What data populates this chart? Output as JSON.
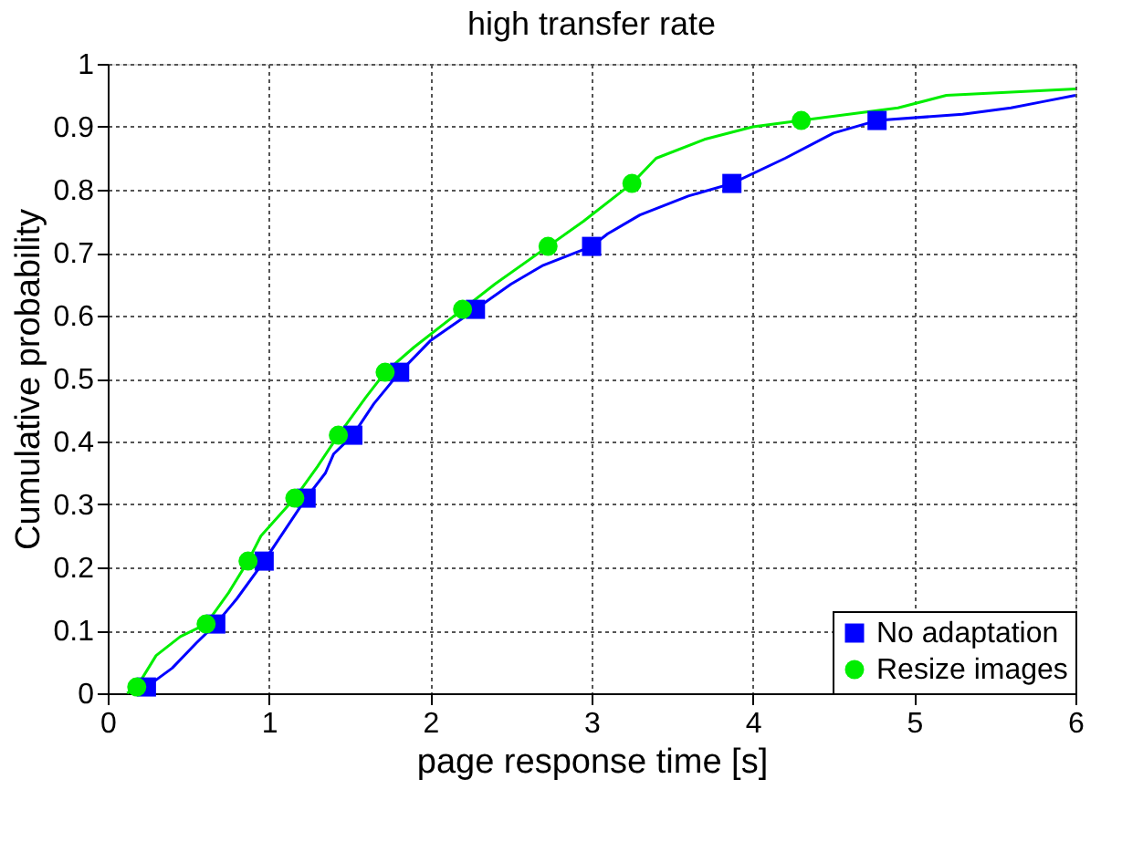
{
  "chart_data": {
    "type": "line",
    "title": "high transfer rate",
    "xlabel": "page response time [s]",
    "ylabel": "Cumulative probability",
    "xlim": [
      0,
      6
    ],
    "xticks": [
      0,
      1,
      2,
      3,
      4,
      5,
      6
    ],
    "ylim": [
      0,
      1
    ],
    "yticks": [
      0,
      0.1,
      0.2,
      0.3,
      0.4,
      0.5,
      0.6,
      0.7,
      0.8,
      0.9,
      1
    ],
    "grid": true,
    "legend": "bottom right",
    "line_style": "solid",
    "series": [
      {
        "name": "No adaptation",
        "color": "#0000ff",
        "x": [
          0.15,
          0.24,
          0.4,
          0.55,
          0.67,
          0.8,
          0.97,
          1.1,
          1.23,
          1.35,
          1.4,
          1.52,
          1.65,
          1.81,
          2.0,
          2.28,
          2.5,
          2.7,
          3.0,
          3.1,
          3.3,
          3.6,
          3.87,
          4.2,
          4.5,
          4.77,
          5.3,
          5.6,
          5.8,
          6.0
        ],
        "values": [
          0.0,
          0.01,
          0.04,
          0.08,
          0.11,
          0.15,
          0.21,
          0.26,
          0.31,
          0.35,
          0.38,
          0.41,
          0.46,
          0.51,
          0.56,
          0.61,
          0.65,
          0.68,
          0.71,
          0.73,
          0.76,
          0.79,
          0.81,
          0.85,
          0.89,
          0.91,
          0.92,
          0.93,
          0.94,
          0.95
        ]
      },
      {
        "name": "Resize images",
        "color": "#00ee00",
        "x": [
          0.12,
          0.18,
          0.3,
          0.45,
          0.61,
          0.75,
          0.87,
          0.95,
          1.16,
          1.3,
          1.43,
          1.6,
          1.72,
          1.9,
          2.2,
          2.4,
          2.73,
          2.95,
          3.25,
          3.4,
          3.7,
          4.0,
          4.3,
          4.9,
          5.2,
          6.0
        ],
        "values": [
          0.0,
          0.01,
          0.06,
          0.09,
          0.11,
          0.16,
          0.21,
          0.25,
          0.31,
          0.36,
          0.41,
          0.47,
          0.51,
          0.55,
          0.61,
          0.65,
          0.71,
          0.75,
          0.81,
          0.85,
          0.88,
          0.9,
          0.91,
          0.93,
          0.95,
          0.96
        ]
      },
      {
        "color": "#0000ff",
        "type": "scatter",
        "marker": "square",
        "x": [
          0.24,
          0.67,
          0.97,
          1.23,
          1.52,
          1.81,
          2.28,
          3.0,
          3.87,
          4.77
        ],
        "values": [
          0.01,
          0.11,
          0.21,
          0.31,
          0.41,
          0.51,
          0.61,
          0.71,
          0.81,
          0.91
        ]
      },
      {
        "color": "#00ee00",
        "type": "scatter",
        "marker": "circle",
        "x": [
          0.18,
          0.61,
          0.87,
          1.16,
          1.43,
          1.72,
          2.2,
          2.73,
          3.25,
          4.3
        ],
        "values": [
          0.01,
          0.11,
          0.21,
          0.31,
          0.41,
          0.51,
          0.61,
          0.71,
          0.81,
          0.91
        ]
      }
    ]
  }
}
